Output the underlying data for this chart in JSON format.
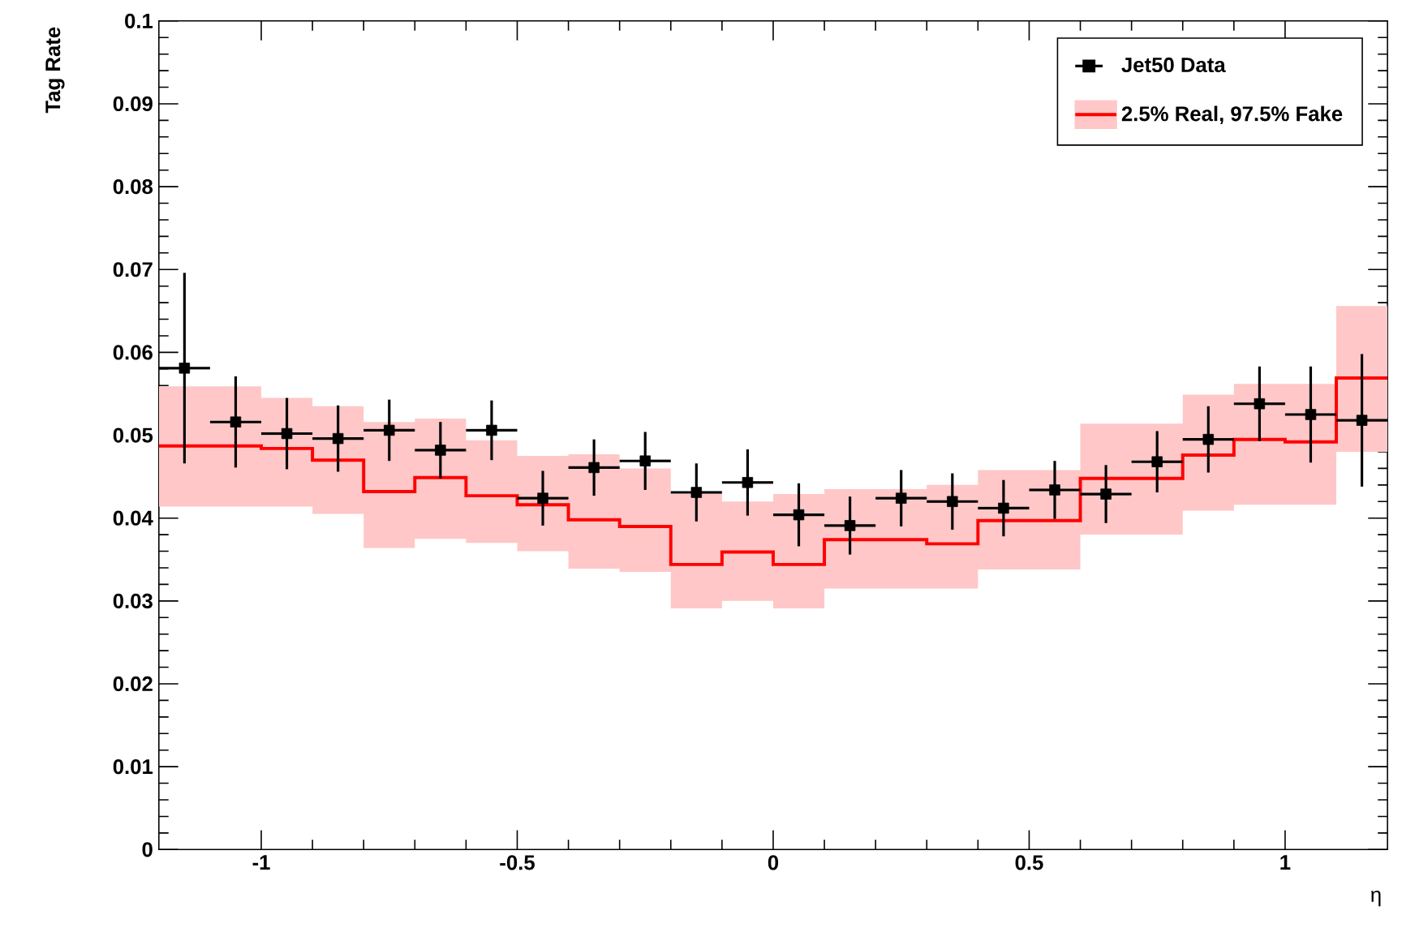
{
  "chart_data": {
    "type": "scatter",
    "xlabel": "η",
    "ylabel": "Tag Rate",
    "xlim": [
      -1.2,
      1.2
    ],
    "ylim": [
      0,
      0.1
    ],
    "xticks": [
      -1,
      -0.5,
      0,
      0.5,
      1
    ],
    "yticks": [
      0,
      0.01,
      0.02,
      0.03,
      0.04,
      0.05,
      0.06,
      0.07,
      0.08,
      0.09,
      0.1
    ],
    "grid": false,
    "legend": "top right",
    "series": [
      {
        "name": "Jet50 Data",
        "marker": "square",
        "color": "#000000",
        "x": [
          -1.15,
          -1.05,
          -0.95,
          -0.85,
          -0.75,
          -0.65,
          -0.55,
          -0.45,
          -0.35,
          -0.25,
          -0.15,
          -0.05,
          0.05,
          0.15,
          0.25,
          0.35,
          0.45,
          0.55,
          0.65,
          0.75,
          0.85,
          0.95,
          1.05,
          1.15
        ],
        "values": [
          0.0581,
          0.0516,
          0.0502,
          0.0496,
          0.0506,
          0.0482,
          0.0506,
          0.0424,
          0.0461,
          0.0469,
          0.0431,
          0.0443,
          0.0404,
          0.0391,
          0.0424,
          0.042,
          0.0412,
          0.0434,
          0.0429,
          0.0468,
          0.0495,
          0.0538,
          0.0525,
          0.0518
        ],
        "errors": [
          0.0115,
          0.0055,
          0.0043,
          0.004,
          0.0037,
          0.0034,
          0.0036,
          0.0033,
          0.0034,
          0.0035,
          0.0035,
          0.004,
          0.0038,
          0.0035,
          0.0034,
          0.0034,
          0.0034,
          0.0035,
          0.0035,
          0.0037,
          0.004,
          0.0045,
          0.0058,
          0.008
        ],
        "xerrors": [
          0.05,
          0.05,
          0.05,
          0.05,
          0.05,
          0.05,
          0.05,
          0.05,
          0.05,
          0.05,
          0.05,
          0.05,
          0.05,
          0.05,
          0.05,
          0.05,
          0.05,
          0.05,
          0.05,
          0.05,
          0.05,
          0.05,
          0.05,
          0.05
        ]
      },
      {
        "name": "2.5% Real, 97.5% Fake",
        "type": "step",
        "marker": "none",
        "color": "#ff0000",
        "x": [
          -1.2,
          -1.1,
          -1.0,
          -0.9,
          -0.8,
          -0.7,
          -0.6,
          -0.5,
          -0.4,
          -0.3,
          -0.2,
          -0.1,
          0,
          0.1,
          0.2,
          0.3,
          0.4,
          0.5,
          0.6,
          0.7,
          0.8,
          0.9,
          1.0,
          1.1,
          1.2
        ],
        "values": [
          0.0487,
          0.0487,
          0.0484,
          0.047,
          0.0432,
          0.0449,
          0.0427,
          0.0416,
          0.0398,
          0.039,
          0.0344,
          0.0359,
          0.0344,
          0.0374,
          0.0374,
          0.0369,
          0.0397,
          0.0397,
          0.0448,
          0.0448,
          0.0476,
          0.0495,
          0.0492,
          0.0569,
          0.0569
        ],
        "lower": [
          0.0414,
          0.0414,
          0.0414,
          0.0405,
          0.0364,
          0.0375,
          0.037,
          0.036,
          0.0339,
          0.0335,
          0.0291,
          0.03,
          0.0291,
          0.0315,
          0.0315,
          0.0315,
          0.0338,
          0.0338,
          0.038,
          0.038,
          0.0409,
          0.0416,
          0.0416,
          0.048,
          0.048
        ],
        "upper": [
          0.0559,
          0.0559,
          0.0545,
          0.0535,
          0.0516,
          0.052,
          0.0494,
          0.0475,
          0.0477,
          0.046,
          0.0429,
          0.042,
          0.0429,
          0.0435,
          0.0435,
          0.044,
          0.0458,
          0.0458,
          0.0514,
          0.0514,
          0.0549,
          0.0562,
          0.0562,
          0.0656,
          0.0656
        ]
      }
    ]
  }
}
